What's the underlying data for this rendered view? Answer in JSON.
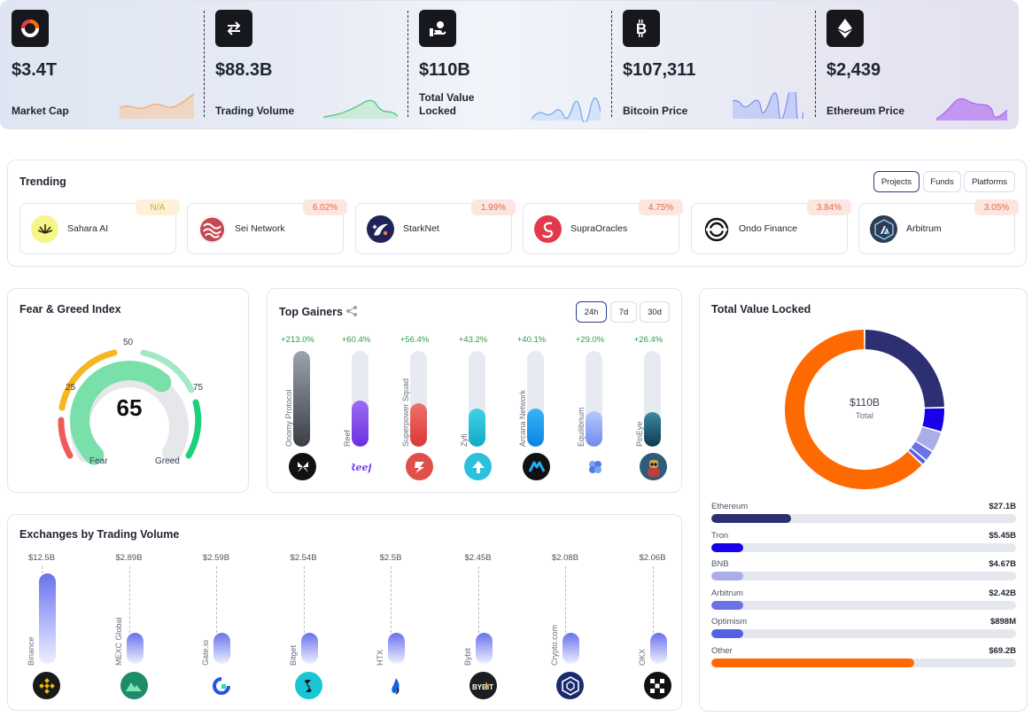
{
  "stats": [
    {
      "label": "Market Cap",
      "value": "$3.4T",
      "icon": "market-cap-icon",
      "spark_color": "#f3b27a"
    },
    {
      "label": "Trading Volume",
      "value": "$88.3B",
      "icon": "exchange-arrows-icon",
      "spark_color": "#4cc27a"
    },
    {
      "label": "Total Value Locked",
      "value": "$110B",
      "icon": "lock-hand-icon",
      "spark_color": "#6fa8f0"
    },
    {
      "label": "Bitcoin Price",
      "value": "$107,311",
      "icon": "bitcoin-icon",
      "spark_color": "#7b8ff0"
    },
    {
      "label": "Ethereum Price",
      "value": "$2,439",
      "icon": "ethereum-icon",
      "spark_color": "#a468f0"
    }
  ],
  "trending": {
    "title": "Trending",
    "tabs": [
      {
        "label": "Projects",
        "active": true
      },
      {
        "label": "Funds",
        "active": false
      },
      {
        "label": "Platforms",
        "active": false
      }
    ],
    "items": [
      {
        "name": "Sahara AI",
        "change": "N/A",
        "icon": "sahara-ai-logo-icon",
        "color": "#f5f58a"
      },
      {
        "name": "Sei Network",
        "change": "6.02%",
        "icon": "sei-network-logo-icon",
        "color": "#c44a52"
      },
      {
        "name": "StarkNet",
        "change": "1.99%",
        "icon": "starknet-logo-icon",
        "color": "#1e2457"
      },
      {
        "name": "SupraOracles",
        "change": "4.75%",
        "icon": "supraoracles-logo-icon",
        "color": "#e23a4c"
      },
      {
        "name": "Ondo Finance",
        "change": "3.84%",
        "icon": "ondo-finance-logo-icon",
        "color": "#111111"
      },
      {
        "name": "Arbitrum",
        "change": "3.05%",
        "icon": "arbitrum-logo-icon",
        "color": "#2c3d55"
      }
    ]
  },
  "fear_greed": {
    "title": "Fear & Greed Index",
    "value": "65",
    "score": 65,
    "labels": {
      "fear": "Fear",
      "greed": "Greed",
      "t25": "25",
      "t50": "50",
      "t75": "75"
    }
  },
  "gainers": {
    "title": "Top Gainers",
    "share_icon": "share-icon",
    "periods": [
      {
        "label": "24h",
        "active": true
      },
      {
        "label": "7d",
        "active": false
      },
      {
        "label": "30d",
        "active": false
      }
    ],
    "items": [
      {
        "name": "Onomy Protocol",
        "change": "+213.0%",
        "fill": 1.0,
        "gradient": [
          "#9ca3af",
          "#3a3d44"
        ],
        "icon": "onomy-logo-icon",
        "icon_bg": "#111111"
      },
      {
        "name": "Reef",
        "change": "+60.4%",
        "fill": 0.48,
        "gradient": [
          "#9b6cf3",
          "#6a2fe0"
        ],
        "icon": "reef-logo-icon",
        "icon_bg": "#ffffff"
      },
      {
        "name": "Superpower Squad",
        "change": "+56.4%",
        "fill": 0.45,
        "gradient": [
          "#f0706a",
          "#d9373a"
        ],
        "icon": "superpower-squad-logo-icon",
        "icon_bg": "#e0504a"
      },
      {
        "name": "Zyfi",
        "change": "+43.2%",
        "fill": 0.4,
        "gradient": [
          "#3fd3e3",
          "#12a9c9"
        ],
        "icon": "zyfi-logo-icon",
        "icon_bg": "#2ac0de"
      },
      {
        "name": "Arcana Network",
        "change": "+40.1%",
        "fill": 0.4,
        "gradient": [
          "#37b4f5",
          "#0a84e3"
        ],
        "icon": "arcana-network-logo-icon",
        "icon_bg": "#111111"
      },
      {
        "name": "Equilibrium",
        "change": "+29.0%",
        "fill": 0.37,
        "gradient": [
          "#b9c8fb",
          "#6f8af2"
        ],
        "icon": "equilibrium-logo-icon",
        "icon_bg": "#ffffff"
      },
      {
        "name": "PinEye",
        "change": "+26.4%",
        "fill": 0.36,
        "gradient": [
          "#3a8aa4",
          "#0f3a4e"
        ],
        "icon": "pineye-logo-icon",
        "icon_bg": "#2f5b7a"
      }
    ]
  },
  "tvl": {
    "title": "Total Value Locked",
    "center_value": "$110B",
    "center_label": "Total",
    "items": [
      {
        "name": "Ethereum",
        "value": "$27.1B",
        "num": 27.1,
        "color": "#2d2f73"
      },
      {
        "name": "Tron",
        "value": "$5.45B",
        "num": 5.45,
        "color": "#1800e8"
      },
      {
        "name": "BNB",
        "value": "$4.67B",
        "num": 4.67,
        "color": "#a9aee8"
      },
      {
        "name": "Arbitrum",
        "value": "$2.42B",
        "num": 2.42,
        "color": "#6a72e6"
      },
      {
        "name": "Optimism",
        "value": "$898M",
        "num": 0.898,
        "color": "#5561e0"
      },
      {
        "name": "Other",
        "value": "$69.2B",
        "num": 69.2,
        "color": "#ff6a00"
      }
    ]
  },
  "exchanges": {
    "title": "Exchanges by Trading Volume",
    "items": [
      {
        "name": "Binance",
        "value": "$12.5B",
        "num": 12.5,
        "icon": "binance-logo-icon",
        "icon_bg": "#1a1a1a"
      },
      {
        "name": "MEXC Global",
        "value": "$2.89B",
        "num": 2.89,
        "icon": "mexc-logo-icon",
        "icon_bg": "#1e8b6a"
      },
      {
        "name": "Gate.io",
        "value": "$2.59B",
        "num": 2.59,
        "icon": "gate-io-logo-icon",
        "icon_bg": "#ffffff"
      },
      {
        "name": "Bitget",
        "value": "$2.54B",
        "num": 2.54,
        "icon": "bitget-logo-icon",
        "icon_bg": "#19c6d6"
      },
      {
        "name": "HTX",
        "value": "$2.5B",
        "num": 2.5,
        "icon": "htx-logo-icon",
        "icon_bg": "#ffffff"
      },
      {
        "name": "Bybit",
        "value": "$2.45B",
        "num": 2.45,
        "icon": "bybit-logo-icon",
        "icon_bg": "#1d1e22"
      },
      {
        "name": "Crypto.com",
        "value": "$2.08B",
        "num": 2.08,
        "icon": "crypto-com-logo-icon",
        "icon_bg": "#1a2a6e"
      },
      {
        "name": "OKX",
        "value": "$2.06B",
        "num": 2.06,
        "icon": "okx-logo-icon",
        "icon_bg": "#111111"
      }
    ]
  }
}
